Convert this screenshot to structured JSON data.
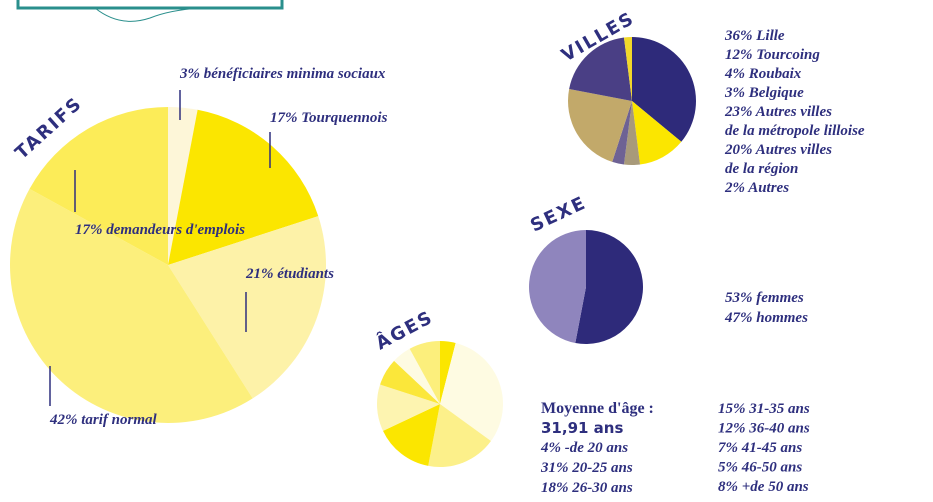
{
  "chart_data": [
    {
      "type": "pie",
      "title": "TARIFS",
      "values": [
        3,
        17,
        21,
        42,
        17
      ],
      "value_labels": [
        "3% bénéficiaires minima sociaux",
        "17% Tourquennois",
        "21% étudiants",
        "42% tarif normal",
        "17% demandeurs d'emplois"
      ],
      "colors": [
        "#fdf6d8",
        "#fbe600",
        "#fdf2a8",
        "#fcef7c",
        "#fcec58"
      ]
    },
    {
      "type": "pie",
      "title": "VILLES",
      "values": [
        36,
        12,
        4,
        3,
        23,
        20,
        2
      ],
      "value_labels": [
        "36% Lille",
        "12% Tourcoing",
        "4% Roubaix",
        "3% Belgique",
        "23% Autres villes\nde la métropole lilloise",
        "20% Autres villes\nde la région",
        "2% Autres"
      ],
      "colors": [
        "#2e2a7a",
        "#fbe600",
        "#a89a7a",
        "#6e6294",
        "#c2a96a",
        "#4a3f85",
        "#f1d82a"
      ]
    },
    {
      "type": "pie",
      "title": "SEXE",
      "values": [
        53,
        47
      ],
      "value_labels": [
        "53% femmes",
        "47% hommes"
      ],
      "colors": [
        "#2e2a7a",
        "#8f85bd"
      ]
    },
    {
      "type": "pie",
      "title": "ÂGES",
      "annotations": [
        "Moyenne d'âge :",
        "31,91 ans"
      ],
      "values": [
        4,
        31,
        18,
        15,
        12,
        7,
        5,
        8
      ],
      "value_labels": [
        "4% -de 20 ans",
        "31% 20-25 ans",
        "18% 26-30 ans",
        "15% 31-35 ans",
        "12% 36-40 ans",
        "7% 41-45 ans",
        "5% 46-50 ans",
        "8% +de 50 ans"
      ],
      "colors": [
        "#fbe600",
        "#fefbe2",
        "#fcf08a",
        "#fbe600",
        "#fdf4b0",
        "#fbe73a",
        "#fefbe2",
        "#fcef7c"
      ]
    }
  ]
}
